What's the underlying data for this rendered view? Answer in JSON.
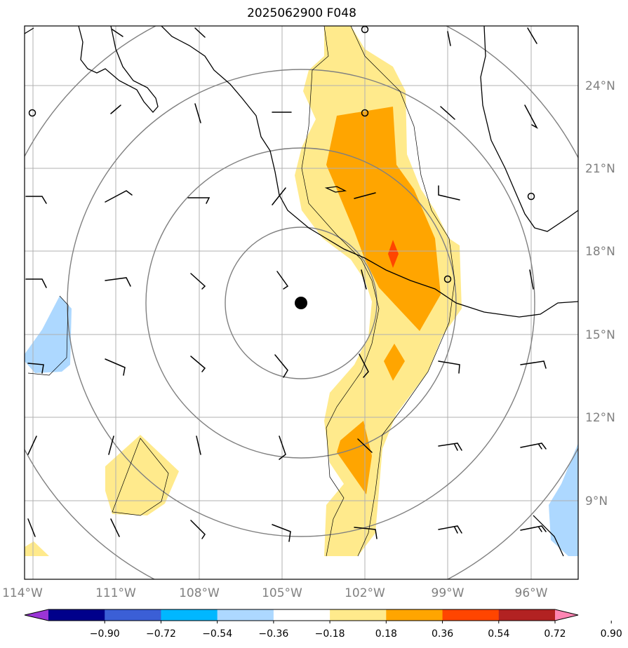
{
  "title": "2025062900 F048",
  "map": {
    "lon_labels": [
      "114°W",
      "111°W",
      "108°W",
      "105°W",
      "102°W",
      "99°W",
      "96°W"
    ],
    "lat_labels": [
      "24°N",
      "21°N",
      "18°N",
      "15°N",
      "12°N",
      "9°N"
    ],
    "range_ring_count": 4,
    "center_marker": "storm-center-dot"
  },
  "colorbar": {
    "tick_labels": [
      "−0.90",
      "−0.72",
      "−0.54",
      "−0.36",
      "−0.18",
      "0.18",
      "0.36",
      "0.54",
      "0.72",
      "0.90"
    ],
    "colors": [
      "#9a35d6",
      "#00008b",
      "#3b5fd6",
      "#00b7ff",
      "#add8ff",
      "#ffffff",
      "#ffea8c",
      "#ffa500",
      "#ff4500",
      "#b22222",
      "#ff85b3"
    ]
  },
  "colors": {
    "contour_light": "#ffea8c",
    "contour_mid": "#ffa500",
    "contour_high": "#ff4500",
    "negative_light": "#add8ff",
    "grid": "#b0b0b0",
    "rings": "#808080"
  }
}
